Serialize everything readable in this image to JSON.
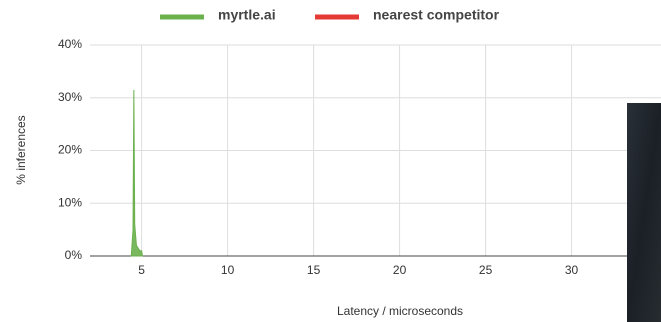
{
  "chart_data": {
    "type": "area",
    "xlabel": "Latency / microseconds",
    "ylabel": "% inferences",
    "series": [
      {
        "name": "myrtle.ai",
        "color": "#6ab04c",
        "x": [
          4.4,
          4.5,
          4.55,
          4.6,
          4.7,
          4.8,
          4.9,
          5.0,
          5.05
        ],
        "values": [
          0,
          5,
          31.5,
          6,
          2,
          1.5,
          1,
          1,
          0
        ]
      },
      {
        "name": "nearest competitor",
        "color": "#e53935",
        "x": [],
        "values": []
      }
    ],
    "xlim": [
      2,
      35.2
    ],
    "xticks": [
      5,
      10,
      15,
      20,
      25,
      30
    ],
    "ylim": [
      0,
      40
    ],
    "yticks": [
      {
        "value": 0,
        "label": "0%"
      },
      {
        "value": 10,
        "label": "10%"
      },
      {
        "value": 20,
        "label": "20%"
      },
      {
        "value": 30,
        "label": "30%"
      },
      {
        "value": 40,
        "label": "40%"
      }
    ],
    "grid": true
  }
}
